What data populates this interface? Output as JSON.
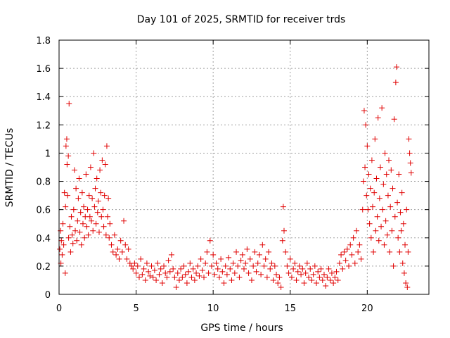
{
  "chart_data": {
    "type": "scatter",
    "title": "Day 101 of 2025, SRMTID for receiver trds",
    "xlabel": "GPS time / hours",
    "ylabel": "SRMTID / TECUs",
    "xlim": [
      0,
      24
    ],
    "ylim": [
      0,
      1.8
    ],
    "xticks": [
      0,
      5,
      10,
      15,
      20
    ],
    "xtick_labels": [
      "0",
      "5",
      "10",
      "15",
      "20"
    ],
    "yticks": [
      0,
      0.2,
      0.4,
      0.6,
      0.8,
      1,
      1.2,
      1.4,
      1.6,
      1.8
    ],
    "ytick_labels": [
      "0",
      "0.2",
      "0.4",
      "0.6",
      "0.8",
      "1",
      "1.2",
      "1.4",
      "1.6",
      "1.8"
    ],
    "grid": true,
    "marker": "+",
    "series": [
      {
        "name": "SRMTID",
        "color": "#e00000",
        "points": [
          [
            0.05,
            0.32
          ],
          [
            0.1,
            0.45
          ],
          [
            0.12,
            0.22
          ],
          [
            0.15,
            0.38
          ],
          [
            0.2,
            0.28
          ],
          [
            0.25,
            0.5
          ],
          [
            0.3,
            0.35
          ],
          [
            0.35,
            0.72
          ],
          [
            0.4,
            0.15
          ],
          [
            0.42,
            0.62
          ],
          [
            0.45,
            1.05
          ],
          [
            0.5,
            1.1
          ],
          [
            0.52,
            0.92
          ],
          [
            0.55,
            0.7
          ],
          [
            0.6,
            0.98
          ],
          [
            0.62,
            0.4
          ],
          [
            0.65,
            1.35
          ],
          [
            0.7,
            0.48
          ],
          [
            0.75,
            0.3
          ],
          [
            0.8,
            0.55
          ],
          [
            0.85,
            0.42
          ],
          [
            0.9,
            0.36
          ],
          [
            0.95,
            0.6
          ],
          [
            1.0,
            0.88
          ],
          [
            1.05,
            0.45
          ],
          [
            1.1,
            0.75
          ],
          [
            1.15,
            0.38
          ],
          [
            1.2,
            0.52
          ],
          [
            1.25,
            0.68
          ],
          [
            1.3,
            0.82
          ],
          [
            1.35,
            0.44
          ],
          [
            1.4,
            0.58
          ],
          [
            1.45,
            0.35
          ],
          [
            1.5,
            0.72
          ],
          [
            1.55,
            0.5
          ],
          [
            1.6,
            0.62
          ],
          [
            1.65,
            0.4
          ],
          [
            1.7,
            0.55
          ],
          [
            1.75,
            0.85
          ],
          [
            1.8,
            0.48
          ],
          [
            1.85,
            0.6
          ],
          [
            1.9,
            0.42
          ],
          [
            1.95,
            0.7
          ],
          [
            2.0,
            0.55
          ],
          [
            2.05,
            0.9
          ],
          [
            2.1,
            0.52
          ],
          [
            2.15,
            0.68
          ],
          [
            2.2,
            0.45
          ],
          [
            2.25,
            1.0
          ],
          [
            2.3,
            0.62
          ],
          [
            2.35,
            0.75
          ],
          [
            2.4,
            0.5
          ],
          [
            2.45,
            0.82
          ],
          [
            2.5,
            0.58
          ],
          [
            2.55,
            0.66
          ],
          [
            2.6,
            0.44
          ],
          [
            2.65,
            0.88
          ],
          [
            2.7,
            0.72
          ],
          [
            2.75,
            0.55
          ],
          [
            2.8,
            0.95
          ],
          [
            2.85,
            0.6
          ],
          [
            2.9,
            0.48
          ],
          [
            2.95,
            0.7
          ],
          [
            3.0,
            0.92
          ],
          [
            3.05,
            0.42
          ],
          [
            3.1,
            1.05
          ],
          [
            3.15,
            0.55
          ],
          [
            3.2,
            0.68
          ],
          [
            3.25,
            0.4
          ],
          [
            3.3,
            0.5
          ],
          [
            3.4,
            0.35
          ],
          [
            3.5,
            0.3
          ],
          [
            3.6,
            0.42
          ],
          [
            3.7,
            0.28
          ],
          [
            3.8,
            0.32
          ],
          [
            3.9,
            0.25
          ],
          [
            4.0,
            0.38
          ],
          [
            4.1,
            0.3
          ],
          [
            4.2,
            0.52
          ],
          [
            4.3,
            0.35
          ],
          [
            4.4,
            0.25
          ],
          [
            4.5,
            0.32
          ],
          [
            4.6,
            0.22
          ],
          [
            4.7,
            0.2
          ],
          [
            4.8,
            0.18
          ],
          [
            4.9,
            0.22
          ],
          [
            5.0,
            0.15
          ],
          [
            5.1,
            0.2
          ],
          [
            5.2,
            0.12
          ],
          [
            5.3,
            0.25
          ],
          [
            5.4,
            0.14
          ],
          [
            5.5,
            0.18
          ],
          [
            5.6,
            0.1
          ],
          [
            5.7,
            0.22
          ],
          [
            5.8,
            0.16
          ],
          [
            5.9,
            0.13
          ],
          [
            6.0,
            0.2
          ],
          [
            6.1,
            0.12
          ],
          [
            6.2,
            0.17
          ],
          [
            6.3,
            0.1
          ],
          [
            6.4,
            0.22
          ],
          [
            6.5,
            0.14
          ],
          [
            6.6,
            0.18
          ],
          [
            6.7,
            0.08
          ],
          [
            6.8,
            0.2
          ],
          [
            6.9,
            0.15
          ],
          [
            7.0,
            0.12
          ],
          [
            7.1,
            0.24
          ],
          [
            7.2,
            0.16
          ],
          [
            7.3,
            0.28
          ],
          [
            7.4,
            0.18
          ],
          [
            7.5,
            0.12
          ],
          [
            7.6,
            0.05
          ],
          [
            7.7,
            0.15
          ],
          [
            7.8,
            0.1
          ],
          [
            7.9,
            0.18
          ],
          [
            8.0,
            0.12
          ],
          [
            8.1,
            0.2
          ],
          [
            8.2,
            0.14
          ],
          [
            8.3,
            0.08
          ],
          [
            8.4,
            0.16
          ],
          [
            8.5,
            0.22
          ],
          [
            8.6,
            0.12
          ],
          [
            8.7,
            0.18
          ],
          [
            8.8,
            0.1
          ],
          [
            8.9,
            0.15
          ],
          [
            9.0,
            0.2
          ],
          [
            9.1,
            0.13
          ],
          [
            9.2,
            0.25
          ],
          [
            9.3,
            0.17
          ],
          [
            9.4,
            0.12
          ],
          [
            9.5,
            0.22
          ],
          [
            9.6,
            0.3
          ],
          [
            9.7,
            0.15
          ],
          [
            9.8,
            0.38
          ],
          [
            9.9,
            0.2
          ],
          [
            10.0,
            0.28
          ],
          [
            10.1,
            0.14
          ],
          [
            10.2,
            0.22
          ],
          [
            10.3,
            0.18
          ],
          [
            10.4,
            0.12
          ],
          [
            10.5,
            0.25
          ],
          [
            10.6,
            0.16
          ],
          [
            10.7,
            0.08
          ],
          [
            10.8,
            0.2
          ],
          [
            10.9,
            0.14
          ],
          [
            11.0,
            0.26
          ],
          [
            11.1,
            0.18
          ],
          [
            11.2,
            0.1
          ],
          [
            11.3,
            0.22
          ],
          [
            11.4,
            0.15
          ],
          [
            11.5,
            0.3
          ],
          [
            11.6,
            0.2
          ],
          [
            11.7,
            0.12
          ],
          [
            11.8,
            0.24
          ],
          [
            11.9,
            0.28
          ],
          [
            12.0,
            0.18
          ],
          [
            12.1,
            0.22
          ],
          [
            12.2,
            0.32
          ],
          [
            12.3,
            0.15
          ],
          [
            12.4,
            0.25
          ],
          [
            12.5,
            0.1
          ],
          [
            12.6,
            0.2
          ],
          [
            12.7,
            0.3
          ],
          [
            12.8,
            0.16
          ],
          [
            12.9,
            0.22
          ],
          [
            13.0,
            0.28
          ],
          [
            13.1,
            0.14
          ],
          [
            13.2,
            0.35
          ],
          [
            13.3,
            0.2
          ],
          [
            13.4,
            0.25
          ],
          [
            13.5,
            0.12
          ],
          [
            13.6,
            0.3
          ],
          [
            13.7,
            0.18
          ],
          [
            13.8,
            0.22
          ],
          [
            13.9,
            0.1
          ],
          [
            14.0,
            0.2
          ],
          [
            14.1,
            0.14
          ],
          [
            14.2,
            0.08
          ],
          [
            14.3,
            0.12
          ],
          [
            14.4,
            0.05
          ],
          [
            14.5,
            0.38
          ],
          [
            14.55,
            0.62
          ],
          [
            14.6,
            0.45
          ],
          [
            14.7,
            0.3
          ],
          [
            14.8,
            0.2
          ],
          [
            14.9,
            0.15
          ],
          [
            15.0,
            0.25
          ],
          [
            15.1,
            0.12
          ],
          [
            15.2,
            0.18
          ],
          [
            15.3,
            0.22
          ],
          [
            15.4,
            0.1
          ],
          [
            15.5,
            0.16
          ],
          [
            15.6,
            0.2
          ],
          [
            15.7,
            0.14
          ],
          [
            15.8,
            0.18
          ],
          [
            15.9,
            0.08
          ],
          [
            16.0,
            0.15
          ],
          [
            16.1,
            0.22
          ],
          [
            16.2,
            0.12
          ],
          [
            16.3,
            0.18
          ],
          [
            16.4,
            0.1
          ],
          [
            16.5,
            0.14
          ],
          [
            16.6,
            0.2
          ],
          [
            16.7,
            0.08
          ],
          [
            16.8,
            0.16
          ],
          [
            16.9,
            0.12
          ],
          [
            17.0,
            0.18
          ],
          [
            17.1,
            0.1
          ],
          [
            17.2,
            0.14
          ],
          [
            17.3,
            0.06
          ],
          [
            17.4,
            0.12
          ],
          [
            17.5,
            0.18
          ],
          [
            17.6,
            0.1
          ],
          [
            17.7,
            0.15
          ],
          [
            17.8,
            0.08
          ],
          [
            17.9,
            0.12
          ],
          [
            18.0,
            0.16
          ],
          [
            18.1,
            0.1
          ],
          [
            18.2,
            0.22
          ],
          [
            18.3,
            0.28
          ],
          [
            18.4,
            0.18
          ],
          [
            18.5,
            0.3
          ],
          [
            18.6,
            0.24
          ],
          [
            18.7,
            0.32
          ],
          [
            18.8,
            0.2
          ],
          [
            18.9,
            0.35
          ],
          [
            19.0,
            0.28
          ],
          [
            19.1,
            0.4
          ],
          [
            19.2,
            0.22
          ],
          [
            19.3,
            0.45
          ],
          [
            19.4,
            0.3
          ],
          [
            19.5,
            0.35
          ],
          [
            19.6,
            0.25
          ],
          [
            19.7,
            0.6
          ],
          [
            19.75,
            0.8
          ],
          [
            19.8,
            1.3
          ],
          [
            19.85,
            0.9
          ],
          [
            19.9,
            1.2
          ],
          [
            19.95,
            0.7
          ],
          [
            20.0,
            1.05
          ],
          [
            20.05,
            0.6
          ],
          [
            20.1,
            0.85
          ],
          [
            20.15,
            0.5
          ],
          [
            20.2,
            0.75
          ],
          [
            20.25,
            0.4
          ],
          [
            20.3,
            0.95
          ],
          [
            20.35,
            0.62
          ],
          [
            20.4,
            0.3
          ],
          [
            20.45,
            0.72
          ],
          [
            20.5,
            1.1
          ],
          [
            20.55,
            0.45
          ],
          [
            20.6,
            0.82
          ],
          [
            20.65,
            0.55
          ],
          [
            20.7,
            1.25
          ],
          [
            20.75,
            0.38
          ],
          [
            20.8,
            0.68
          ],
          [
            20.85,
            0.9
          ],
          [
            20.9,
            0.48
          ],
          [
            20.95,
            1.32
          ],
          [
            21.0,
            0.6
          ],
          [
            21.05,
            0.78
          ],
          [
            21.1,
            0.35
          ],
          [
            21.15,
            1.0
          ],
          [
            21.2,
            0.52
          ],
          [
            21.25,
            0.85
          ],
          [
            21.3,
            0.42
          ],
          [
            21.35,
            0.7
          ],
          [
            21.4,
            0.95
          ],
          [
            21.45,
            0.3
          ],
          [
            21.5,
            0.62
          ],
          [
            21.55,
            0.88
          ],
          [
            21.6,
            0.45
          ],
          [
            21.65,
            0.75
          ],
          [
            21.7,
            0.2
          ],
          [
            21.75,
            1.24
          ],
          [
            21.8,
            0.55
          ],
          [
            21.85,
            1.5
          ],
          [
            21.9,
            1.61
          ],
          [
            21.95,
            0.65
          ],
          [
            22.0,
            0.4
          ],
          [
            22.05,
            0.85
          ],
          [
            22.1,
            0.3
          ],
          [
            22.15,
            0.58
          ],
          [
            22.2,
            0.45
          ],
          [
            22.25,
            0.72
          ],
          [
            22.3,
            0.22
          ],
          [
            22.35,
            0.5
          ],
          [
            22.4,
            0.15
          ],
          [
            22.45,
            0.35
          ],
          [
            22.5,
            0.08
          ],
          [
            22.55,
            0.6
          ],
          [
            22.6,
            0.05
          ],
          [
            22.65,
            0.3
          ],
          [
            22.7,
            1.1
          ],
          [
            22.75,
            1.0
          ],
          [
            22.8,
            0.93
          ],
          [
            22.85,
            0.86
          ]
        ]
      }
    ]
  }
}
